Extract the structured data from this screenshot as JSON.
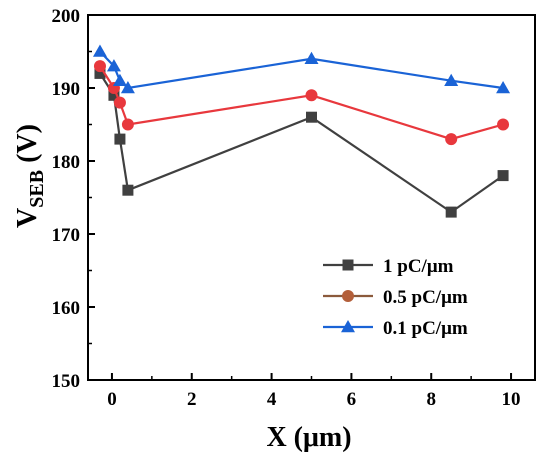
{
  "chart_data": {
    "type": "line",
    "xlabel": "X (μm)",
    "ylabel": {
      "main": "V",
      "sub": "SEB",
      "unit": " (V)"
    },
    "xlim": [
      -0.6,
      10.6
    ],
    "ylim": [
      150,
      200
    ],
    "xticks": [
      0,
      2,
      4,
      6,
      8,
      10
    ],
    "yticks": [
      150,
      160,
      170,
      180,
      190,
      200
    ],
    "grid": false,
    "legend_position": "bottom-right",
    "series": [
      {
        "name": "1 pC/μm",
        "color": "#404040",
        "marker": "square",
        "x": [
          -0.3,
          0.05,
          0.2,
          0.4,
          5.0,
          8.5,
          9.8
        ],
        "y": [
          192,
          189,
          183,
          176,
          186,
          173,
          178
        ]
      },
      {
        "name": "0.5 pC/μm",
        "color": "#e8383d",
        "marker": "circle",
        "marker_color": "#b35f3a",
        "x": [
          -0.3,
          0.05,
          0.2,
          0.4,
          5.0,
          8.5,
          9.8
        ],
        "y": [
          193,
          190,
          188,
          185,
          189,
          183,
          185
        ]
      },
      {
        "name": "0.1 pC/μm",
        "color": "#1a63d6",
        "marker": "triangle",
        "x": [
          -0.3,
          0.05,
          0.2,
          0.4,
          5.0,
          8.5,
          9.8
        ],
        "y": [
          195,
          193,
          191,
          190,
          194,
          191,
          190
        ]
      }
    ]
  }
}
